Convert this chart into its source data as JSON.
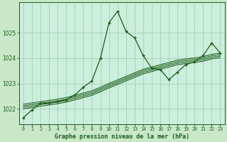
{
  "title": "Graphe pression niveau de la mer (hPa)",
  "background_color": "#c8e8c8",
  "plot_bg_color": "#cceedd",
  "grid_color": "#99ccaa",
  "line_color": "#1a5c1a",
  "x_labels": [
    "0",
    "1",
    "2",
    "3",
    "4",
    "5",
    "6",
    "7",
    "8",
    "9",
    "10",
    "11",
    "12",
    "13",
    "14",
    "15",
    "16",
    "17",
    "18",
    "19",
    "20",
    "21",
    "22",
    "23"
  ],
  "ylim": [
    1021.4,
    1026.2
  ],
  "yticks": [
    1022,
    1023,
    1024,
    1025
  ],
  "main_series": [
    1021.65,
    1021.95,
    1022.22,
    1022.22,
    1022.28,
    1022.35,
    1022.55,
    1022.85,
    1023.1,
    1024.0,
    1025.4,
    1025.85,
    1025.05,
    1024.8,
    1024.1,
    1023.6,
    1023.55,
    1023.15,
    1023.45,
    1023.75,
    1023.85,
    1024.1,
    1024.6,
    1024.2
  ],
  "trend_series_1": [
    1022.18,
    1022.23,
    1022.28,
    1022.33,
    1022.38,
    1022.44,
    1022.53,
    1022.62,
    1022.71,
    1022.85,
    1023.0,
    1023.14,
    1023.28,
    1023.42,
    1023.56,
    1023.65,
    1023.74,
    1023.83,
    1023.92,
    1023.97,
    1024.01,
    1024.06,
    1024.15,
    1024.2
  ],
  "trend_series_2": [
    1022.12,
    1022.17,
    1022.22,
    1022.27,
    1022.32,
    1022.38,
    1022.47,
    1022.56,
    1022.65,
    1022.79,
    1022.94,
    1023.08,
    1023.22,
    1023.36,
    1023.5,
    1023.59,
    1023.68,
    1023.77,
    1023.86,
    1023.91,
    1023.95,
    1024.0,
    1024.09,
    1024.14
  ],
  "trend_series_3": [
    1022.06,
    1022.11,
    1022.16,
    1022.21,
    1022.26,
    1022.32,
    1022.41,
    1022.5,
    1022.59,
    1022.73,
    1022.88,
    1023.02,
    1023.16,
    1023.3,
    1023.44,
    1023.53,
    1023.62,
    1023.71,
    1023.8,
    1023.85,
    1023.89,
    1023.94,
    1024.03,
    1024.08
  ],
  "trend_series_4": [
    1022.0,
    1022.05,
    1022.1,
    1022.15,
    1022.2,
    1022.26,
    1022.35,
    1022.44,
    1022.53,
    1022.67,
    1022.82,
    1022.96,
    1023.1,
    1023.24,
    1023.38,
    1023.47,
    1023.56,
    1023.65,
    1023.74,
    1023.79,
    1023.83,
    1023.88,
    1023.97,
    1024.02
  ]
}
